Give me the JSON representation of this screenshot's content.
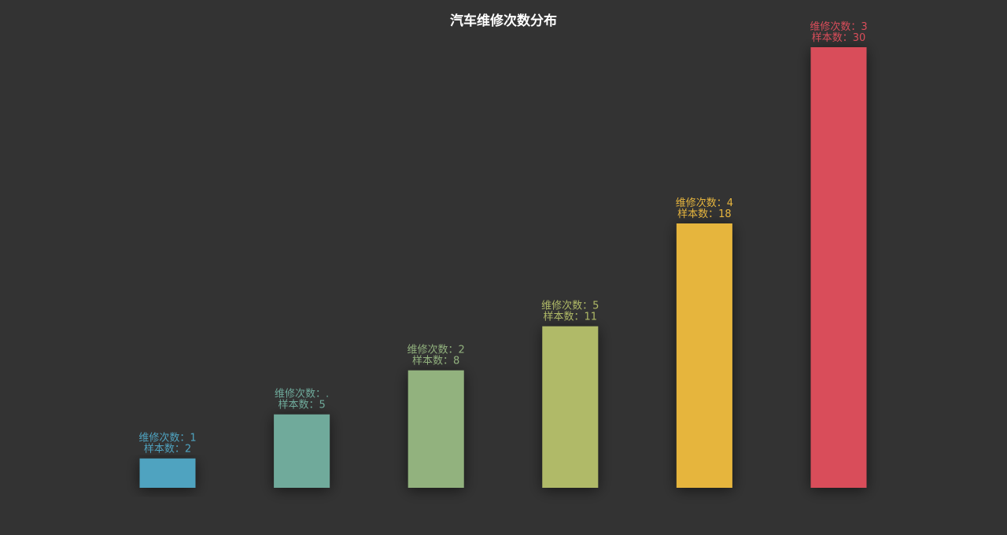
{
  "chart_data": {
    "type": "bar",
    "title": "汽车维修次数分布",
    "xlabel": "",
    "ylabel": "",
    "ylim": [
      0,
      30
    ],
    "grid": false,
    "legend": "none",
    "bars": [
      {
        "label_line1": "维修次数：1",
        "label_line2": "样本数：2",
        "value": 2,
        "color": "#4fa3c0"
      },
      {
        "label_line1": "维修次数：.",
        "label_line2": "样本数：5",
        "value": 5,
        "color": "#6faa9b"
      },
      {
        "label_line1": "维修次数：2",
        "label_line2": "样本数：8",
        "value": 8,
        "color": "#92b27e"
      },
      {
        "label_line1": "维修次数：5",
        "label_line2": "样本数：11",
        "value": 11,
        "color": "#b0ba67"
      },
      {
        "label_line1": "维修次数：4",
        "label_line2": "样本数：18",
        "value": 18,
        "color": "#e6b53e"
      },
      {
        "label_line1": "维修次数：3",
        "label_line2": "样本数：30",
        "value": 30,
        "color": "#d94d5a"
      }
    ],
    "colors": {
      "background": "#333333",
      "title": "#ffffff"
    }
  }
}
